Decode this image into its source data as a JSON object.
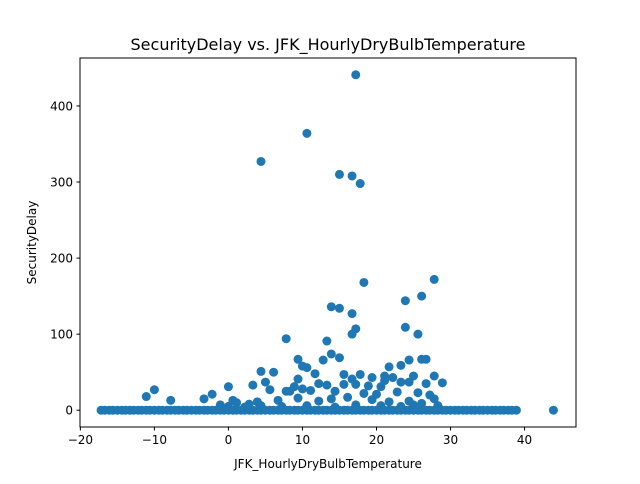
{
  "chart_data": {
    "type": "scatter",
    "title": "SecurityDelay vs. JFK_HourlyDryBulbTemperature",
    "xlabel": "JFK_HourlyDryBulbTemperature",
    "ylabel": "SecurityDelay",
    "xlim": [
      -20.05,
      46.95
    ],
    "ylim": [
      -22.05,
      463.05
    ],
    "xticks": [
      -20,
      -10,
      0,
      10,
      20,
      30,
      40
    ],
    "yticks": [
      0,
      100,
      200,
      300,
      400
    ],
    "grid": false,
    "legend": "none",
    "marker_color": "#1f77b4",
    "series": [
      {
        "points": [
          [
            4.4,
            327
          ],
          [
            10.6,
            364
          ],
          [
            15.0,
            310
          ],
          [
            16.7,
            308
          ],
          [
            17.2,
            441
          ],
          [
            17.8,
            298
          ],
          [
            18.3,
            168
          ],
          [
            27.8,
            172
          ],
          [
            26.1,
            150
          ],
          [
            23.9,
            144
          ],
          [
            13.9,
            136
          ],
          [
            15.0,
            134
          ],
          [
            16.7,
            127
          ],
          [
            23.9,
            109
          ],
          [
            17.2,
            107
          ],
          [
            16.7,
            100
          ],
          [
            25.6,
            100
          ],
          [
            7.8,
            94
          ],
          [
            13.3,
            91
          ],
          [
            13.9,
            74
          ],
          [
            9.4,
            67
          ],
          [
            15.0,
            69
          ],
          [
            12.8,
            66
          ],
          [
            26.1,
            67
          ],
          [
            26.7,
            67
          ],
          [
            23.3,
            59
          ],
          [
            24.4,
            66
          ],
          [
            21.7,
            57
          ],
          [
            10.0,
            58
          ],
          [
            10.6,
            56
          ],
          [
            11.7,
            48
          ],
          [
            4.4,
            51
          ],
          [
            6.1,
            50
          ],
          [
            15.6,
            47
          ],
          [
            17.8,
            47
          ],
          [
            19.4,
            43
          ],
          [
            21.1,
            45
          ],
          [
            22.2,
            43
          ],
          [
            25.0,
            45
          ],
          [
            27.8,
            45
          ],
          [
            9.4,
            41
          ],
          [
            16.7,
            41
          ],
          [
            21.1,
            39
          ],
          [
            23.3,
            37
          ],
          [
            24.4,
            37
          ],
          [
            26.7,
            35
          ],
          [
            28.9,
            36
          ],
          [
            5.0,
            37
          ],
          [
            12.2,
            35
          ],
          [
            13.3,
            33
          ],
          [
            15.6,
            34
          ],
          [
            17.2,
            34
          ],
          [
            18.9,
            32
          ],
          [
            20.6,
            31
          ],
          [
            0.0,
            31
          ],
          [
            3.3,
            33
          ],
          [
            8.9,
            31
          ],
          [
            10.0,
            28
          ],
          [
            5.6,
            27
          ],
          [
            7.8,
            25
          ],
          [
            8.3,
            25
          ],
          [
            11.1,
            26
          ],
          [
            14.4,
            25
          ],
          [
            18.3,
            22
          ],
          [
            20.0,
            21
          ],
          [
            22.8,
            24
          ],
          [
            25.6,
            23
          ],
          [
            27.2,
            20
          ],
          [
            -10.0,
            27
          ],
          [
            -11.1,
            18
          ],
          [
            -7.8,
            13
          ],
          [
            -3.3,
            15
          ],
          [
            -2.2,
            21
          ],
          [
            0.6,
            13
          ],
          [
            1.1,
            10
          ],
          [
            2.8,
            8
          ],
          [
            3.9,
            11
          ],
          [
            6.7,
            13
          ],
          [
            9.4,
            16
          ],
          [
            12.2,
            12
          ],
          [
            13.9,
            15
          ],
          [
            16.1,
            17
          ],
          [
            19.4,
            14
          ],
          [
            21.7,
            11
          ],
          [
            24.4,
            12
          ],
          [
            26.1,
            9
          ],
          [
            27.8,
            15
          ],
          [
            -1.1,
            7
          ],
          [
            0.0,
            5
          ],
          [
            2.2,
            4
          ],
          [
            4.4,
            6
          ],
          [
            7.2,
            5
          ],
          [
            10.6,
            6
          ],
          [
            14.4,
            4
          ],
          [
            17.2,
            7
          ],
          [
            20.6,
            6
          ],
          [
            23.3,
            5
          ],
          [
            25.0,
            7
          ],
          [
            28.3,
            6
          ],
          [
            -17.2,
            0
          ],
          [
            -16.7,
            0
          ],
          [
            -16.1,
            0
          ],
          [
            -15.6,
            0
          ],
          [
            -15.0,
            0
          ],
          [
            -14.4,
            0
          ],
          [
            -13.9,
            0
          ],
          [
            -13.3,
            0
          ],
          [
            -12.8,
            0
          ],
          [
            -12.2,
            0
          ],
          [
            -11.7,
            0
          ],
          [
            -11.1,
            0
          ],
          [
            -10.6,
            0
          ],
          [
            -10.0,
            0
          ],
          [
            -9.4,
            0
          ],
          [
            -8.9,
            0
          ],
          [
            -8.3,
            0
          ],
          [
            -7.8,
            0
          ],
          [
            -7.2,
            0
          ],
          [
            -6.7,
            0
          ],
          [
            -6.1,
            0
          ],
          [
            -5.6,
            0
          ],
          [
            -5.0,
            0
          ],
          [
            -4.4,
            0
          ],
          [
            -3.9,
            0
          ],
          [
            -3.3,
            0
          ],
          [
            -2.8,
            0
          ],
          [
            -2.2,
            0
          ],
          [
            -1.7,
            0
          ],
          [
            -1.1,
            0
          ],
          [
            -0.6,
            0
          ],
          [
            0.0,
            0
          ],
          [
            0.6,
            0
          ],
          [
            1.1,
            0
          ],
          [
            1.7,
            0
          ],
          [
            2.2,
            0
          ],
          [
            2.8,
            0
          ],
          [
            3.3,
            0
          ],
          [
            3.9,
            0
          ],
          [
            4.4,
            0
          ],
          [
            5.0,
            0
          ],
          [
            5.6,
            0
          ],
          [
            6.1,
            0
          ],
          [
            6.7,
            0
          ],
          [
            7.2,
            0
          ],
          [
            7.8,
            0
          ],
          [
            8.3,
            0
          ],
          [
            8.9,
            0
          ],
          [
            9.4,
            0
          ],
          [
            10.0,
            0
          ],
          [
            10.6,
            0
          ],
          [
            11.1,
            0
          ],
          [
            11.7,
            0
          ],
          [
            12.2,
            0
          ],
          [
            12.8,
            0
          ],
          [
            13.3,
            0
          ],
          [
            13.9,
            0
          ],
          [
            14.4,
            0
          ],
          [
            15.0,
            0
          ],
          [
            15.6,
            0
          ],
          [
            16.1,
            0
          ],
          [
            16.7,
            0
          ],
          [
            17.2,
            0
          ],
          [
            17.8,
            0
          ],
          [
            18.3,
            0
          ],
          [
            18.9,
            0
          ],
          [
            19.4,
            0
          ],
          [
            20.0,
            0
          ],
          [
            20.6,
            0
          ],
          [
            21.1,
            0
          ],
          [
            21.7,
            0
          ],
          [
            22.2,
            0
          ],
          [
            22.8,
            0
          ],
          [
            23.3,
            0
          ],
          [
            23.9,
            0
          ],
          [
            24.4,
            0
          ],
          [
            25.0,
            0
          ],
          [
            25.6,
            0
          ],
          [
            26.1,
            0
          ],
          [
            26.7,
            0
          ],
          [
            27.2,
            0
          ],
          [
            27.8,
            0
          ],
          [
            28.3,
            0
          ],
          [
            28.9,
            0
          ],
          [
            29.4,
            0
          ],
          [
            30.0,
            0
          ],
          [
            30.6,
            0
          ],
          [
            31.1,
            0
          ],
          [
            31.7,
            0
          ],
          [
            32.2,
            0
          ],
          [
            32.8,
            0
          ],
          [
            33.3,
            0
          ],
          [
            33.9,
            0
          ],
          [
            34.4,
            0
          ],
          [
            35.0,
            0
          ],
          [
            35.6,
            0
          ],
          [
            36.1,
            0
          ],
          [
            36.7,
            0
          ],
          [
            37.2,
            0
          ],
          [
            37.8,
            0
          ],
          [
            38.3,
            0
          ],
          [
            38.9,
            0
          ],
          [
            43.9,
            0
          ]
        ]
      }
    ]
  }
}
